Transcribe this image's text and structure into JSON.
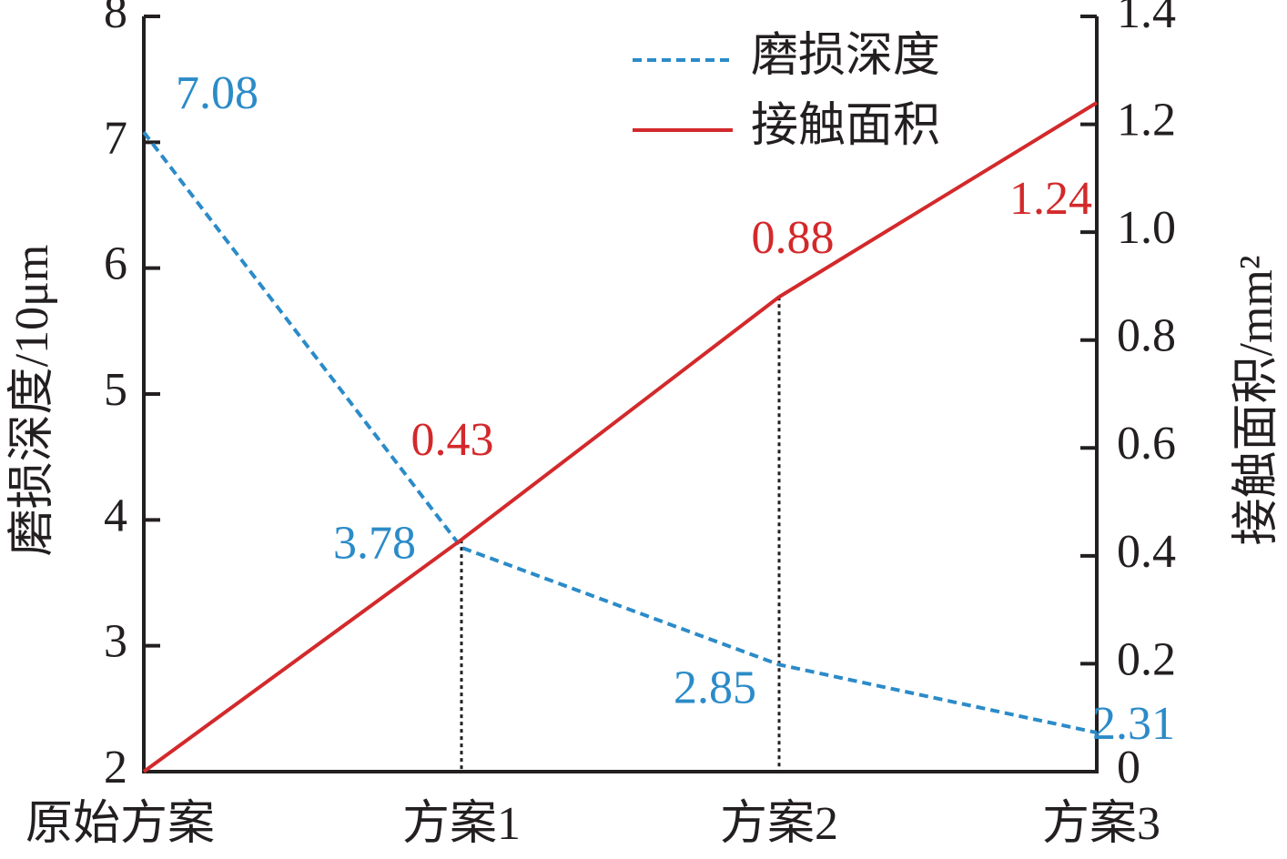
{
  "chart_data": {
    "type": "line",
    "categories": [
      "原始方案",
      "方案1",
      "方案2",
      "方案3"
    ],
    "ylabel": "磨损深度/10μm",
    "y2label": "接触面积/mm²",
    "ylim": [
      2,
      8
    ],
    "yticks": [
      2,
      3,
      4,
      5,
      6,
      7,
      8
    ],
    "y2lim": [
      0,
      1.4
    ],
    "y2ticks": [
      0,
      0.2,
      0.4,
      0.6,
      0.8,
      {
        "value": 1,
        "label": "1.0"
      },
      1.2,
      1.4
    ],
    "legend": "upper right",
    "series": [
      {
        "name": "磨损深度",
        "color": "#2b8bc8",
        "dash": true,
        "values": [
          7.08,
          3.78,
          2.85,
          2.31
        ],
        "value_labels": [
          "7.08",
          "3.78",
          "2.85",
          "2.31"
        ]
      },
      {
        "name": "接触面积",
        "color": "#d3292b",
        "dash": false,
        "axis": "y2",
        "values": [
          0,
          0.43,
          0.88,
          1.24
        ],
        "value_labels": [
          null,
          "0.43",
          "0.88",
          "1.24"
        ]
      }
    ]
  }
}
